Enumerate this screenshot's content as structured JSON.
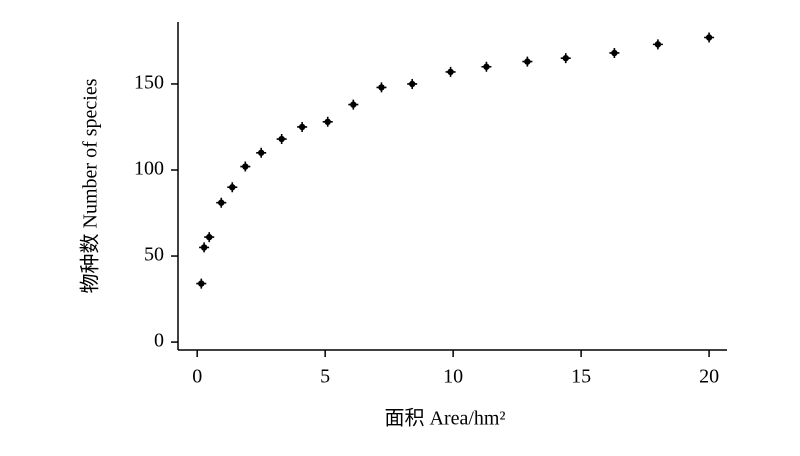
{
  "chart_data": {
    "type": "scatter",
    "x_label": "面积 Area/hm²",
    "y_label": "物种数 Number of species",
    "x": [
      0.16,
      0.27,
      0.47,
      0.94,
      1.37,
      1.88,
      2.5,
      3.3,
      4.1,
      5.1,
      6.1,
      7.2,
      8.4,
      9.9,
      11.3,
      12.9,
      14.4,
      16.3,
      18.0,
      20.0
    ],
    "values": [
      34,
      55,
      61,
      81,
      90,
      102,
      110,
      118,
      125,
      128,
      138,
      148,
      150,
      157,
      160,
      163,
      165,
      168,
      173,
      177
    ],
    "color": "#000000",
    "xlim": [
      -0.75,
      20.7
    ],
    "xticks": [
      0,
      5,
      10,
      15,
      20
    ],
    "ylim": [
      -4.6,
      186
    ],
    "yticks": [
      0,
      50,
      100,
      150
    ],
    "grid": false
  }
}
